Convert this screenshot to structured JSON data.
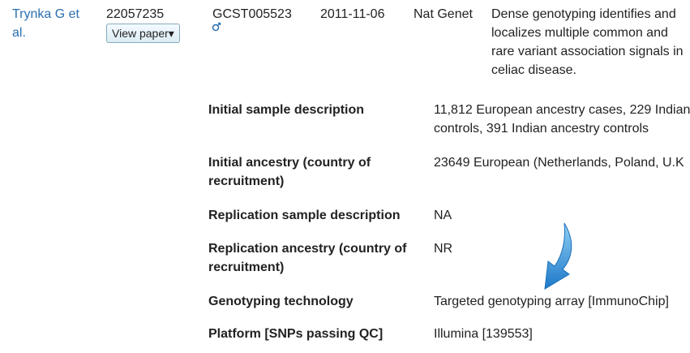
{
  "study": {
    "author_lines": [
      "Trynka G et",
      "al."
    ],
    "pubmed_id": "22057235",
    "button": "View paper",
    "accession": "GCST005523",
    "date": "2011-11-06",
    "journal": "Nat Genet",
    "title_lines": [
      "Dense genotyping identifies and",
      "localizes multiple common and",
      "rare variant association signals in",
      "celiac disease."
    ]
  },
  "details": [
    {
      "label_lines": [
        "Initial sample description"
      ],
      "value_lines": [
        "11,812 European ancestry cases, 229 Indian",
        "controls, 391 Indian ancestry controls"
      ]
    },
    {
      "label_lines": [
        "Initial ancestry (country of",
        "recruitment)"
      ],
      "value_lines": [
        "23649 European (Netherlands, Poland, U.K"
      ]
    },
    {
      "label_lines": [
        "Replication sample description"
      ],
      "value_lines": [
        "NA"
      ]
    },
    {
      "label_lines": [
        "Replication ancestry (country of",
        "recruitment)"
      ],
      "value_lines": [
        "NR"
      ]
    },
    {
      "label_lines": [
        "Genotyping technology"
      ],
      "value_lines": [
        "Targeted genotyping array [ImmunoChip]"
      ]
    },
    {
      "label_lines": [
        "Platform [SNPs passing QC]"
      ],
      "value_lines": [
        "Illumina [139553]"
      ]
    }
  ]
}
